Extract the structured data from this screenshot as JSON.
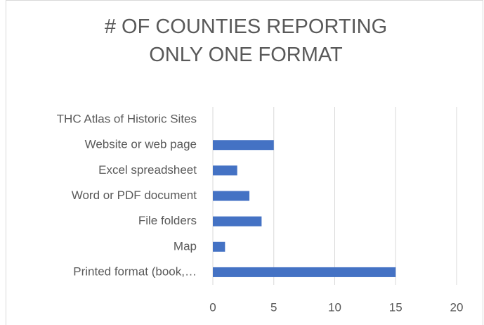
{
  "chart_data": {
    "type": "bar",
    "orientation": "horizontal",
    "title": "# OF COUNTIES REPORTING ONLY ONE FORMAT",
    "categories": [
      "THC Atlas of Historic Sites",
      "Website or web page",
      "Excel spreadsheet",
      "Word or PDF document",
      "File folders",
      "Map",
      "Printed format (book,…"
    ],
    "values": [
      0,
      5,
      2,
      3,
      4,
      1,
      15
    ],
    "color": "#4472c4",
    "xlim": [
      0,
      20
    ],
    "xticks": [
      0,
      5,
      10,
      15,
      20
    ],
    "grid": true
  }
}
